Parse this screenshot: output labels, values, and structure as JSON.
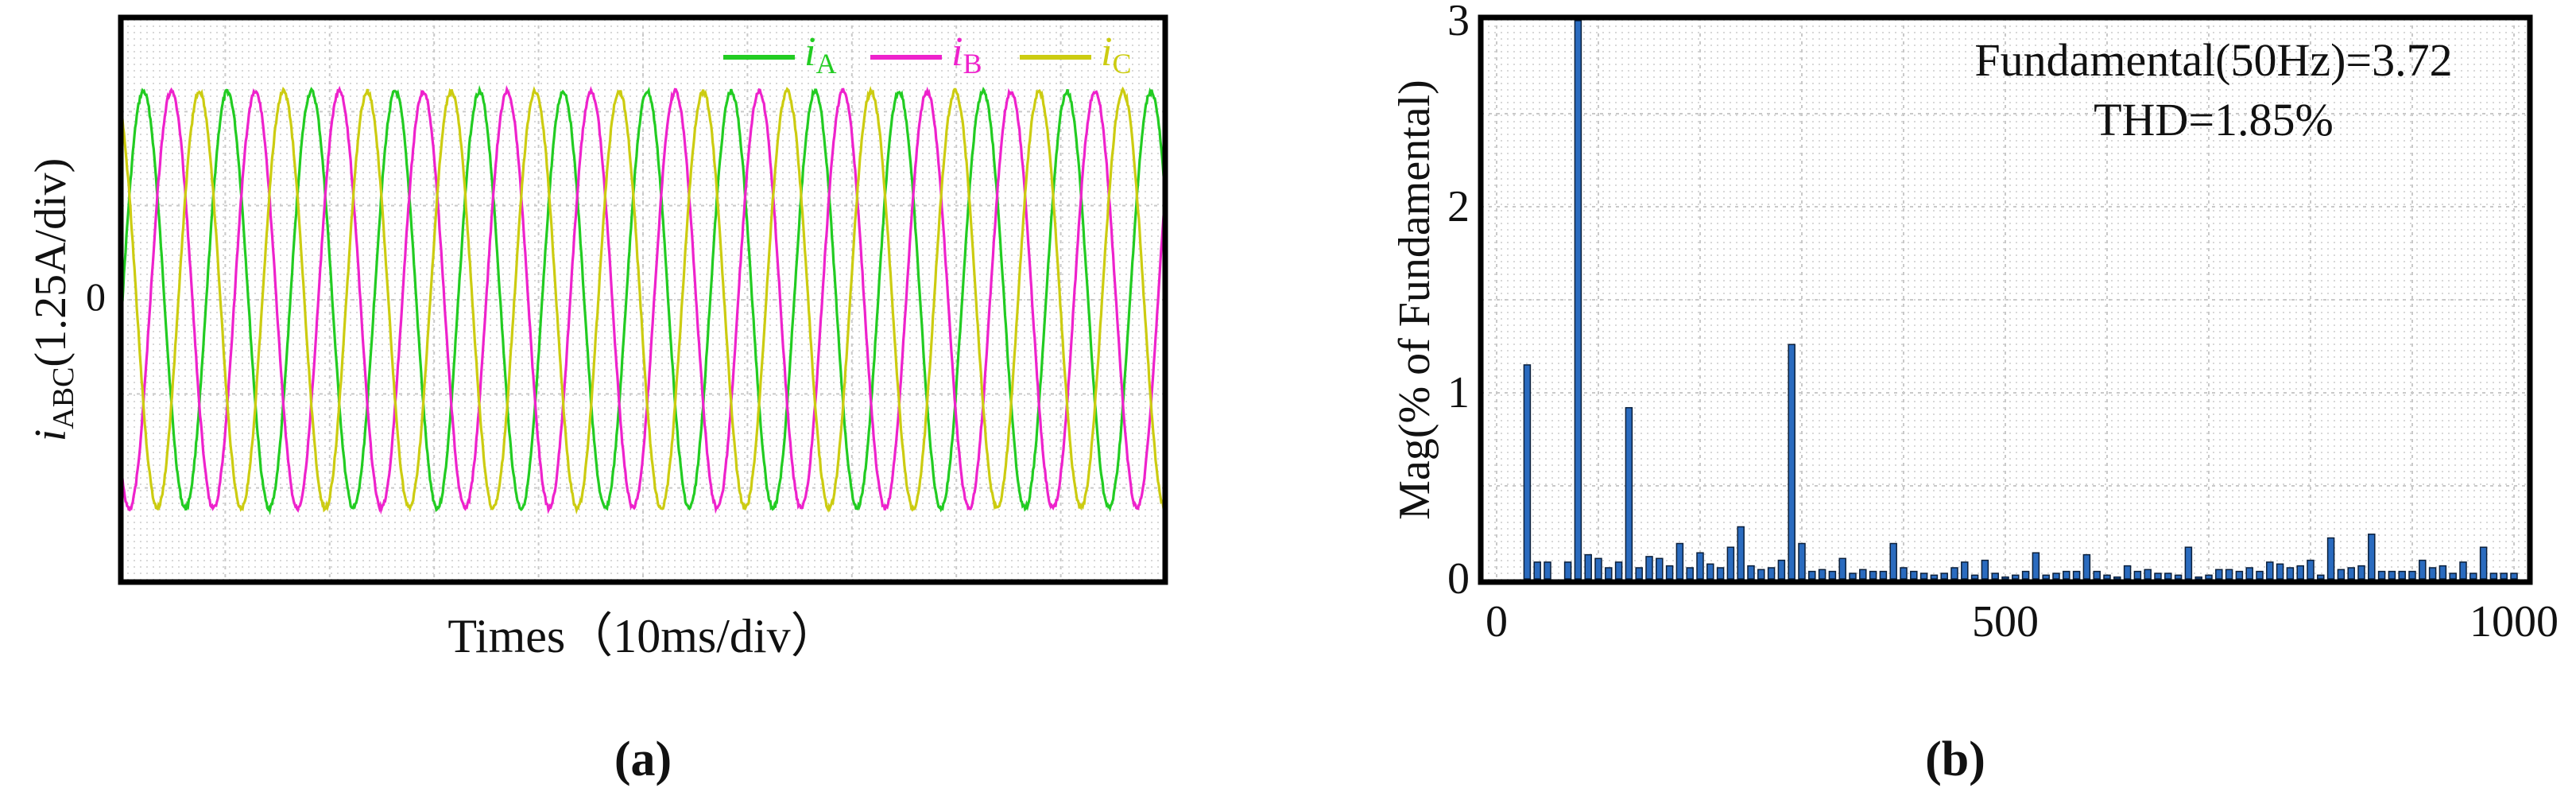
{
  "panel_a": {
    "label": "(a)",
    "legend": [
      {
        "sym": "i",
        "sub": "A",
        "color": "#22cc22"
      },
      {
        "sym": "i",
        "sub": "B",
        "color": "#ee22cc"
      },
      {
        "sym": "i",
        "sub": "C",
        "color": "#cccc11"
      }
    ],
    "y_zero": "0",
    "ylabel": {
      "sym": "i",
      "sub": "ABC",
      "rest": "(1.25A/div)"
    },
    "xlabel": "Times（10ms/div）",
    "line_colors": {
      "a": "#22cc22",
      "b": "#ee22cc",
      "c": "#cccc11"
    }
  },
  "panel_b": {
    "label": "(b)",
    "ylabel": "Mag(% of Fundamental)",
    "ann1": "Fundamental(50Hz)=3.72",
    "ann2": "THD=1.85%",
    "bar_color": "#2a6bbf"
  },
  "chart_data": [
    {
      "type": "line",
      "xlabel": "Times（10ms/div）",
      "ylabel": "iABC(1.25A/div)",
      "y_tick_labels": [
        "0"
      ],
      "legend_position": "top-right",
      "grid": true,
      "fundamental_hz": 50,
      "x_range_ms": [
        0,
        248
      ],
      "amplitude_divisions": 2,
      "series": [
        {
          "name": "iA",
          "phase_deg": 0,
          "color": "#22cc22"
        },
        {
          "name": "iB",
          "phase_deg": -120,
          "color": "#ee22cc"
        },
        {
          "name": "iC",
          "phase_deg": 120,
          "color": "#cccc11"
        }
      ]
    },
    {
      "type": "bar",
      "ylabel": "Mag(% of Fundamental)",
      "xlabel": "",
      "xlim": [
        0,
        1000
      ],
      "ylim": [
        0,
        3
      ],
      "x_ticks": [
        0,
        500,
        1000
      ],
      "y_ticks": [
        0,
        1,
        2,
        3
      ],
      "grid": true,
      "annotations": [
        "Fundamental(50Hz)=3.72",
        "THD=1.85%"
      ],
      "x": [
        30,
        40,
        50,
        70,
        80,
        90,
        100,
        110,
        120,
        130,
        140,
        150,
        160,
        170,
        180,
        190,
        200,
        210,
        220,
        230,
        240,
        250,
        260,
        270,
        280,
        290,
        300,
        310,
        320,
        330,
        340,
        350,
        360,
        370,
        380,
        390,
        400,
        410,
        420,
        430,
        440,
        450,
        460,
        470,
        480,
        490,
        500,
        510,
        520,
        530,
        540,
        550,
        560,
        570,
        580,
        590,
        600,
        610,
        620,
        630,
        640,
        650,
        660,
        670,
        680,
        690,
        700,
        710,
        720,
        730,
        740,
        750,
        760,
        770,
        780,
        790,
        800,
        810,
        820,
        830,
        840,
        850,
        860,
        870,
        880,
        890,
        900,
        910,
        920,
        930,
        940,
        950,
        960,
        970,
        980,
        990,
        1000
      ],
      "values": [
        1.15,
        0.09,
        0.09,
        0.09,
        3.0,
        0.13,
        0.11,
        0.06,
        0.09,
        0.92,
        0.06,
        0.12,
        0.11,
        0.07,
        0.19,
        0.06,
        0.14,
        0.08,
        0.06,
        0.17,
        0.28,
        0.07,
        0.05,
        0.06,
        0.1,
        1.26,
        0.19,
        0.04,
        0.05,
        0.04,
        0.11,
        0.03,
        0.05,
        0.04,
        0.04,
        0.19,
        0.06,
        0.04,
        0.03,
        0.02,
        0.03,
        0.06,
        0.09,
        0.02,
        0.1,
        0.03,
        0.01,
        0.02,
        0.04,
        0.14,
        0.02,
        0.03,
        0.04,
        0.04,
        0.13,
        0.04,
        0.02,
        0.01,
        0.07,
        0.04,
        0.05,
        0.03,
        0.03,
        0.02,
        0.17,
        0.01,
        0.02,
        0.05,
        0.05,
        0.04,
        0.06,
        0.04,
        0.09,
        0.08,
        0.06,
        0.07,
        0.1,
        0.02,
        0.22,
        0.05,
        0.06,
        0.07,
        0.24,
        0.04,
        0.04,
        0.04,
        0.04,
        0.1,
        0.06,
        0.07,
        0.03,
        0.09,
        0.03,
        0.17,
        0.03,
        0.03,
        0.03
      ]
    }
  ]
}
